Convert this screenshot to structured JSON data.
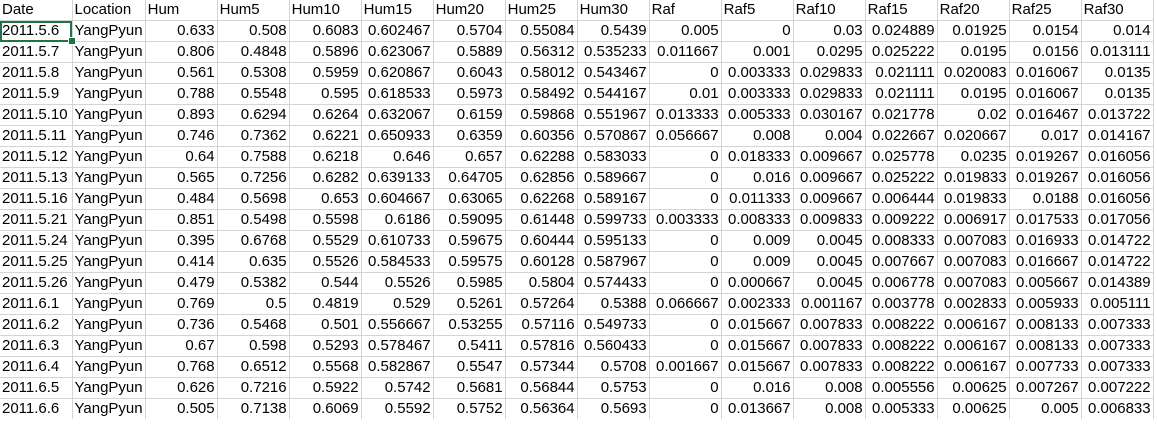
{
  "sheet": {
    "headers": [
      "Date",
      "Location",
      "Hum",
      "Hum5",
      "Hum10",
      "Hum15",
      "Hum20",
      "Hum25",
      "Hum30",
      "Raf",
      "Raf5",
      "Raf10",
      "Raf15",
      "Raf20",
      "Raf25",
      "Raf30"
    ],
    "rows": [
      [
        "2011.5.6",
        "YangPyun",
        "0.633",
        "0.508",
        "0.6083",
        "0.602467",
        "0.5704",
        "0.55084",
        "0.5439",
        "0.005",
        "0",
        "0.03",
        "0.024889",
        "0.01925",
        "0.0154",
        "0.014"
      ],
      [
        "2011.5.7",
        "YangPyun",
        "0.806",
        "0.4848",
        "0.5896",
        "0.623067",
        "0.5889",
        "0.56312",
        "0.535233",
        "0.011667",
        "0.001",
        "0.0295",
        "0.025222",
        "0.0195",
        "0.0156",
        "0.013111"
      ],
      [
        "2011.5.8",
        "YangPyun",
        "0.561",
        "0.5308",
        "0.5959",
        "0.620867",
        "0.6043",
        "0.58012",
        "0.543467",
        "0",
        "0.003333",
        "0.029833",
        "0.021111",
        "0.020083",
        "0.016067",
        "0.0135"
      ],
      [
        "2011.5.9",
        "YangPyun",
        "0.788",
        "0.5548",
        "0.595",
        "0.618533",
        "0.5973",
        "0.58492",
        "0.544167",
        "0.01",
        "0.003333",
        "0.029833",
        "0.021111",
        "0.0195",
        "0.016067",
        "0.0135"
      ],
      [
        "2011.5.10",
        "YangPyun",
        "0.893",
        "0.6294",
        "0.6264",
        "0.632067",
        "0.6159",
        "0.59868",
        "0.551967",
        "0.013333",
        "0.005333",
        "0.030167",
        "0.021778",
        "0.02",
        "0.016467",
        "0.013722"
      ],
      [
        "2011.5.11",
        "YangPyun",
        "0.746",
        "0.7362",
        "0.6221",
        "0.650933",
        "0.6359",
        "0.60356",
        "0.570867",
        "0.056667",
        "0.008",
        "0.004",
        "0.022667",
        "0.020667",
        "0.017",
        "0.014167"
      ],
      [
        "2011.5.12",
        "YangPyun",
        "0.64",
        "0.7588",
        "0.6218",
        "0.646",
        "0.657",
        "0.62288",
        "0.583033",
        "0",
        "0.018333",
        "0.009667",
        "0.025778",
        "0.0235",
        "0.019267",
        "0.016056"
      ],
      [
        "2011.5.13",
        "YangPyun",
        "0.565",
        "0.7256",
        "0.6282",
        "0.639133",
        "0.64705",
        "0.62856",
        "0.589667",
        "0",
        "0.016",
        "0.009667",
        "0.025222",
        "0.019833",
        "0.019267",
        "0.016056"
      ],
      [
        "2011.5.16",
        "YangPyun",
        "0.484",
        "0.5698",
        "0.653",
        "0.604667",
        "0.63065",
        "0.62268",
        "0.589167",
        "0",
        "0.011333",
        "0.009667",
        "0.006444",
        "0.019833",
        "0.0188",
        "0.016056"
      ],
      [
        "2011.5.21",
        "YangPyun",
        "0.851",
        "0.5498",
        "0.5598",
        "0.6186",
        "0.59095",
        "0.61448",
        "0.599733",
        "0.003333",
        "0.008333",
        "0.009833",
        "0.009222",
        "0.006917",
        "0.017533",
        "0.017056"
      ],
      [
        "2011.5.24",
        "YangPyun",
        "0.395",
        "0.6768",
        "0.5529",
        "0.610733",
        "0.59675",
        "0.60444",
        "0.595133",
        "0",
        "0.009",
        "0.0045",
        "0.008333",
        "0.007083",
        "0.016933",
        "0.014722"
      ],
      [
        "2011.5.25",
        "YangPyun",
        "0.414",
        "0.635",
        "0.5526",
        "0.584533",
        "0.59575",
        "0.60128",
        "0.587967",
        "0",
        "0.009",
        "0.0045",
        "0.007667",
        "0.007083",
        "0.016667",
        "0.014722"
      ],
      [
        "2011.5.26",
        "YangPyun",
        "0.479",
        "0.5382",
        "0.544",
        "0.5526",
        "0.5985",
        "0.5804",
        "0.574433",
        "0",
        "0.000667",
        "0.0045",
        "0.006778",
        "0.007083",
        "0.005667",
        "0.014389"
      ],
      [
        "2011.6.1",
        "YangPyun",
        "0.769",
        "0.5",
        "0.4819",
        "0.529",
        "0.5261",
        "0.57264",
        "0.5388",
        "0.066667",
        "0.002333",
        "0.001167",
        "0.003778",
        "0.002833",
        "0.005933",
        "0.005111"
      ],
      [
        "2011.6.2",
        "YangPyun",
        "0.736",
        "0.5468",
        "0.501",
        "0.556667",
        "0.53255",
        "0.57116",
        "0.549733",
        "0",
        "0.015667",
        "0.007833",
        "0.008222",
        "0.006167",
        "0.008133",
        "0.007333"
      ],
      [
        "2011.6.3",
        "YangPyun",
        "0.67",
        "0.598",
        "0.5293",
        "0.578467",
        "0.5411",
        "0.57816",
        "0.560433",
        "0",
        "0.015667",
        "0.007833",
        "0.008222",
        "0.006167",
        "0.008133",
        "0.007333"
      ],
      [
        "2011.6.4",
        "YangPyun",
        "0.768",
        "0.6512",
        "0.5568",
        "0.582867",
        "0.5547",
        "0.57344",
        "0.5708",
        "0.001667",
        "0.015667",
        "0.007833",
        "0.008222",
        "0.006167",
        "0.007733",
        "0.007333"
      ],
      [
        "2011.6.5",
        "YangPyun",
        "0.626",
        "0.7216",
        "0.5922",
        "0.5742",
        "0.5681",
        "0.56844",
        "0.5753",
        "0",
        "0.016",
        "0.008",
        "0.005556",
        "0.00625",
        "0.007267",
        "0.007222"
      ],
      [
        "2011.6.6",
        "YangPyun",
        "0.505",
        "0.7138",
        "0.6069",
        "0.5592",
        "0.5752",
        "0.56364",
        "0.5693",
        "0",
        "0.013667",
        "0.008",
        "0.005333",
        "0.00625",
        "0.005",
        "0.006833"
      ]
    ]
  }
}
